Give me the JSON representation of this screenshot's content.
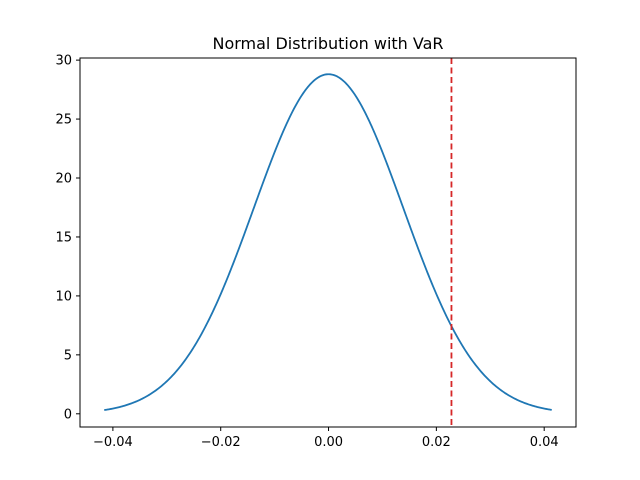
{
  "chart_data": {
    "type": "line",
    "title": "Normal Distribution with VaR",
    "xlabel": "",
    "ylabel": "",
    "xlim": [
      -0.0461,
      0.0459
    ],
    "ylim": [
      -1.12,
      30.18
    ],
    "xticks": [
      -0.04,
      -0.02,
      0.0,
      0.02,
      0.04
    ],
    "xtick_labels": [
      "−0.04",
      "−0.02",
      "0.00",
      "0.02",
      "0.04"
    ],
    "yticks": [
      0,
      5,
      10,
      15,
      20,
      25,
      30
    ],
    "ytick_labels": [
      "0",
      "5",
      "10",
      "15",
      "20",
      "25",
      "30"
    ],
    "grid": false,
    "series": [
      {
        "kind": "normal_pdf",
        "mean": 0.0,
        "std": 0.01385,
        "x_range": [
          -0.0416,
          0.0414
        ],
        "color": "#1f77b4"
      }
    ],
    "vlines": [
      {
        "x": 0.0228,
        "color": "#d62728",
        "style": "dashed"
      }
    ]
  }
}
